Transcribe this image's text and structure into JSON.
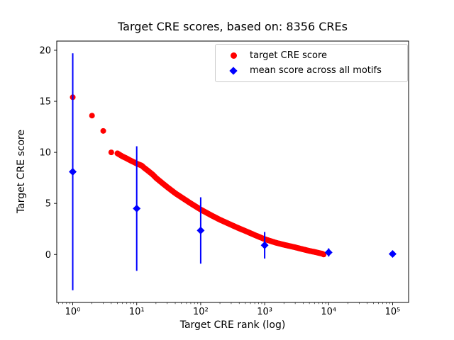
{
  "chart_data": {
    "type": "scatter",
    "title": "Target CRE scores, based on: 8356 CREs",
    "xlabel": "Target CRE rank (log)",
    "ylabel": "Target CRE score",
    "x_scale": "log",
    "xlim_log10": [
      -0.25,
      5.25
    ],
    "ylim": [
      -4.7,
      20.9
    ],
    "x_tick_values": [
      1,
      10,
      100,
      1000,
      10000,
      100000
    ],
    "x_tick_labels": [
      "10⁰",
      "10¹",
      "10²",
      "10³",
      "10⁴",
      "10⁵"
    ],
    "y_ticks": [
      0,
      5,
      10,
      15,
      20
    ],
    "grid": false,
    "legend": {
      "position": "upper right",
      "entries": [
        {
          "label": "target CRE score",
          "marker": "circle",
          "color": "#ff0000"
        },
        {
          "label": "mean score across all motifs",
          "marker": "diamond",
          "color": "#0000ff"
        }
      ]
    },
    "series": [
      {
        "name": "target CRE score",
        "render": "scatter",
        "color": "#ff0000",
        "marker": "circle",
        "total_points": 8356,
        "points": [
          [
            1,
            15.4
          ],
          [
            2,
            13.6
          ],
          [
            3,
            12.1
          ],
          [
            4,
            10.0
          ],
          [
            5,
            9.9
          ],
          [
            6,
            9.6
          ],
          [
            7,
            9.4
          ],
          [
            8,
            9.2
          ],
          [
            9,
            9.05
          ],
          [
            10,
            8.9
          ],
          [
            12,
            8.7
          ],
          [
            13,
            8.5
          ],
          [
            15,
            8.2
          ],
          [
            18,
            7.8
          ],
          [
            20,
            7.5
          ],
          [
            25,
            7.0
          ],
          [
            30,
            6.6
          ],
          [
            40,
            6.0
          ],
          [
            50,
            5.6
          ],
          [
            70,
            5.0
          ],
          [
            100,
            4.4
          ],
          [
            150,
            3.8
          ],
          [
            200,
            3.4
          ],
          [
            300,
            2.9
          ],
          [
            400,
            2.55
          ],
          [
            500,
            2.3
          ],
          [
            700,
            1.9
          ],
          [
            1000,
            1.5
          ],
          [
            1500,
            1.15
          ],
          [
            2000,
            0.95
          ],
          [
            3000,
            0.7
          ],
          [
            4000,
            0.5
          ],
          [
            5000,
            0.35
          ],
          [
            6000,
            0.25
          ],
          [
            7000,
            0.15
          ],
          [
            8000,
            0.07
          ],
          [
            8356,
            0.0
          ]
        ]
      },
      {
        "name": "mean score across all motifs",
        "render": "errorbar",
        "color": "#0000ff",
        "marker": "diamond",
        "points": [
          {
            "x": 1,
            "y": 8.1,
            "err_up": 11.6,
            "err_down": 11.6
          },
          {
            "x": 10,
            "y": 4.5,
            "err_up": 6.1,
            "err_down": 6.1
          },
          {
            "x": 100,
            "y": 2.35,
            "err_up": 3.25,
            "err_down": 3.25
          },
          {
            "x": 1000,
            "y": 0.9,
            "err_up": 1.3,
            "err_down": 1.3
          },
          {
            "x": 10000,
            "y": 0.2,
            "err_up": 0.4,
            "err_down": 0.4
          },
          {
            "x": 100000,
            "y": 0.05,
            "err_up": 0.08,
            "err_down": 0.08
          }
        ]
      }
    ]
  }
}
